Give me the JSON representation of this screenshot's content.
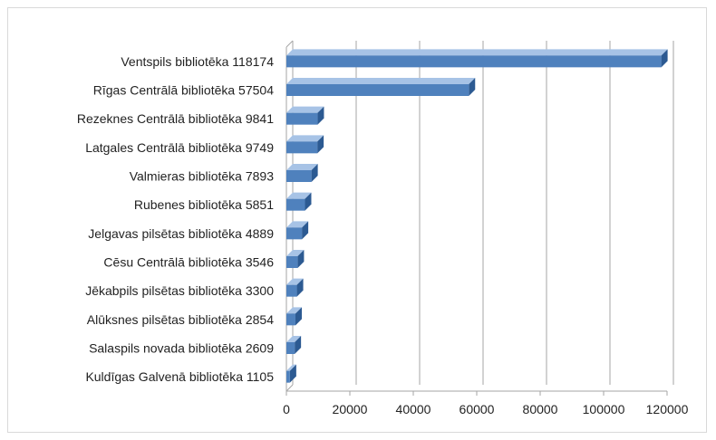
{
  "chart_data": {
    "type": "bar",
    "orientation": "horizontal",
    "style": "3d",
    "title": "",
    "xlabel": "",
    "ylabel": "",
    "categories": [
      "Ventspils bibliotēka  118174",
      "Rīgas Centrālā bibliotēka  57504",
      "Rezeknes Centrālā bibliotēka  9841",
      "Latgales Centrālā bibliotēka  9749",
      "Valmieras bibliotēka  7893",
      "Rubenes bibliotēka  5851",
      "Jelgavas pilsētas bibliotēka  4889",
      "Cēsu Centrālā bibliotēka  3546",
      "Jēkabpils pilsētas bibliotēka  3300",
      "Alūksnes pilsētas bibliotēka  2854",
      "Salaspils novada bibliotēka   2609",
      "Kuldīgas Galvenā bibliotēka   1105"
    ],
    "values": [
      118174,
      57504,
      9841,
      9749,
      7893,
      5851,
      4889,
      3546,
      3300,
      2854,
      2609,
      1105
    ],
    "xlim": [
      0,
      120000
    ],
    "xticks": [
      0,
      20000,
      40000,
      60000,
      80000,
      100000,
      120000
    ],
    "grid": true,
    "legend": "none",
    "colors": {
      "bar_front": "#4f81bd",
      "bar_top": "#a7c3e6",
      "bar_side": "#2c5a92",
      "gridline": "#a6a6a6",
      "text": "#222222"
    }
  }
}
